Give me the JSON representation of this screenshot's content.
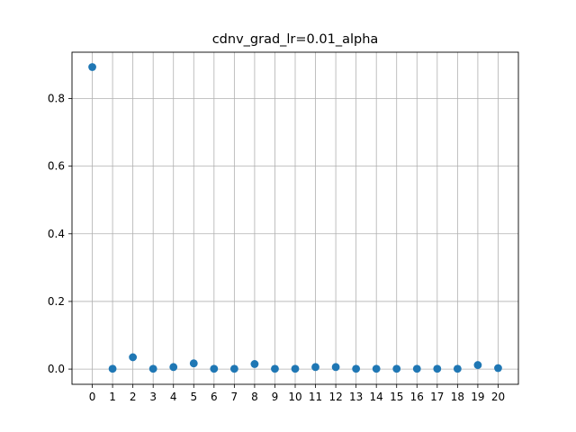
{
  "chart_data": {
    "type": "scatter",
    "title": "cdnv_grad_lr=0.01_alpha",
    "xlabel": "",
    "ylabel": "",
    "x": [
      0,
      1,
      2,
      3,
      4,
      5,
      6,
      7,
      8,
      9,
      10,
      11,
      12,
      13,
      14,
      15,
      16,
      17,
      18,
      19,
      20
    ],
    "y": [
      0.893,
      0.001,
      0.035,
      0.001,
      0.006,
      0.017,
      0.001,
      0.001,
      0.015,
      0.001,
      0.001,
      0.006,
      0.006,
      0.001,
      0.001,
      0.001,
      0.001,
      0.001,
      0.001,
      0.012,
      0.003
    ],
    "xticks": [
      "0",
      "1",
      "2",
      "3",
      "4",
      "5",
      "6",
      "7",
      "8",
      "9",
      "10",
      "11",
      "12",
      "13",
      "14",
      "15",
      "16",
      "17",
      "18",
      "19",
      "20"
    ],
    "yticks": [
      "0.0",
      "0.2",
      "0.4",
      "0.6",
      "0.8"
    ],
    "ytick_values": [
      0.0,
      0.2,
      0.4,
      0.6,
      0.8
    ],
    "xlim": [
      -1,
      21
    ],
    "ylim": [
      -0.045,
      0.937
    ],
    "grid": true,
    "color": "#1f77b4"
  }
}
